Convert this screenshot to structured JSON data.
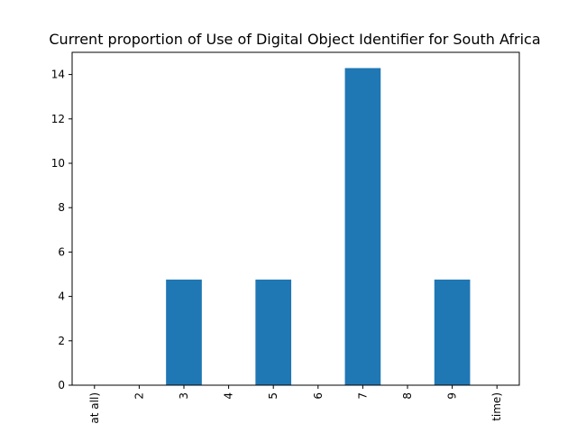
{
  "chart_data": {
    "type": "bar",
    "title": "Current proportion of Use of Digital Object Identifier for South Africa",
    "xlabel": "",
    "ylabel": "",
    "categories": [
      "at all)",
      "2",
      "3",
      "4",
      "5",
      "6",
      "7",
      "8",
      "9",
      "time)"
    ],
    "values": [
      0,
      0,
      4.76,
      0,
      4.76,
      0,
      14.29,
      0,
      4.76,
      0
    ],
    "ylim": [
      0,
      15
    ],
    "yticks": [
      0,
      2,
      4,
      6,
      8,
      10,
      12,
      14
    ],
    "bar_color": "#1f77b4",
    "grid": false,
    "legend": "none"
  }
}
